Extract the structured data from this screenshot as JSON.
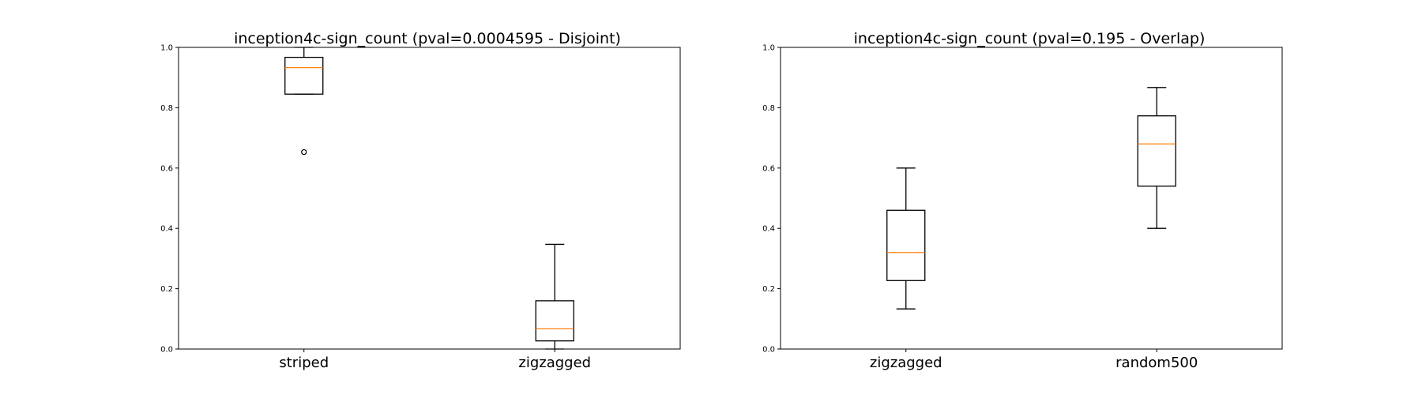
{
  "colors": {
    "median": "#ff7f0e",
    "box": "#000000",
    "background": "#ffffff"
  },
  "chart_data": [
    {
      "type": "box",
      "title": "inception4c-sign_count (pval=0.0004595 - Disjoint)",
      "xlabel": "",
      "ylabel": "",
      "ylim": [
        0.0,
        1.0
      ],
      "yticks": [
        0.0,
        0.2,
        0.4,
        0.6,
        0.8,
        1.0
      ],
      "ytick_labels": [
        "0.0",
        "0.2",
        "0.4",
        "0.6",
        "0.8",
        "1.0"
      ],
      "grid": false,
      "categories": [
        "striped",
        "zigzagged"
      ],
      "boxes": [
        {
          "whislo": 0.845,
          "q1": 0.845,
          "med": 0.933,
          "q3": 0.967,
          "whishi": 1.0,
          "fliers": [
            0.653
          ]
        },
        {
          "whislo": 0.0,
          "q1": 0.027,
          "med": 0.067,
          "q3": 0.16,
          "whishi": 0.347,
          "fliers": []
        }
      ]
    },
    {
      "type": "box",
      "title": "inception4c-sign_count (pval=0.195 - Overlap)",
      "xlabel": "",
      "ylabel": "",
      "ylim": [
        0.0,
        1.0
      ],
      "yticks": [
        0.0,
        0.2,
        0.4,
        0.6,
        0.8,
        1.0
      ],
      "ytick_labels": [
        "0.0",
        "0.2",
        "0.4",
        "0.6",
        "0.8",
        "1.0"
      ],
      "grid": false,
      "categories": [
        "zigzagged",
        "random500"
      ],
      "boxes": [
        {
          "whislo": 0.133,
          "q1": 0.227,
          "med": 0.32,
          "q3": 0.46,
          "whishi": 0.6,
          "fliers": []
        },
        {
          "whislo": 0.4,
          "q1": 0.54,
          "med": 0.68,
          "q3": 0.773,
          "whishi": 0.867,
          "fliers": []
        }
      ]
    }
  ]
}
